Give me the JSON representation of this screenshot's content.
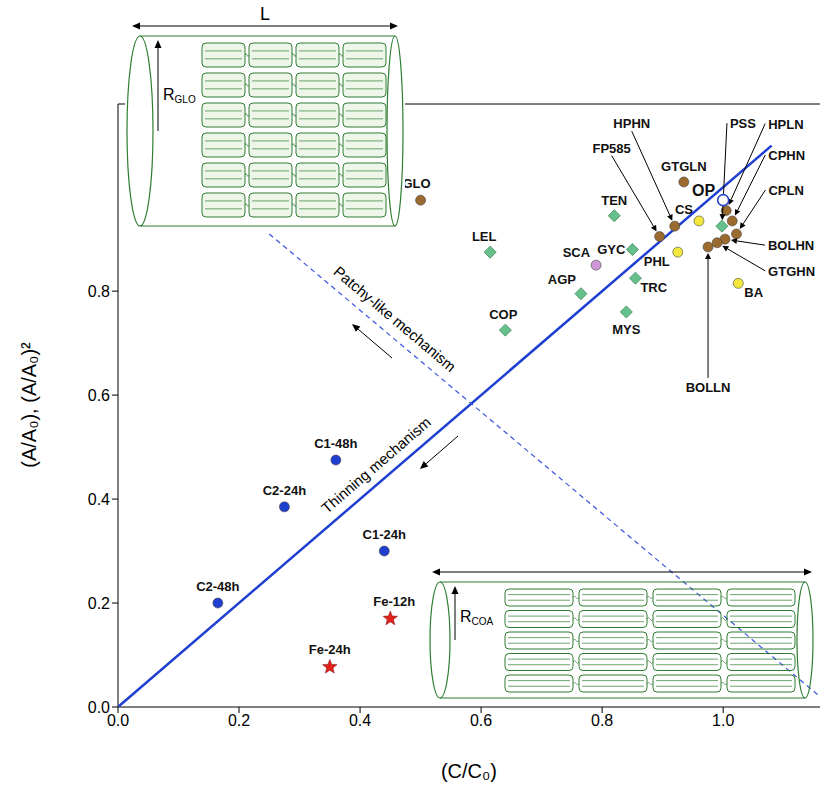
{
  "chart_data": {
    "type": "scatter",
    "x_label": "(C/C₀)",
    "y_label": "(A/A₀), (A/A₀)²",
    "xlim": [
      0,
      1.16
    ],
    "ylim": [
      0,
      1.16
    ],
    "xticks": [
      {
        "value": 0,
        "label": "0.0"
      },
      0.2,
      0.4,
      0.6,
      0.8,
      {
        "value": 1,
        "label": "1.0"
      }
    ],
    "yticks": [
      {
        "value": 0,
        "label": "0.0"
      },
      0.2,
      0.4,
      0.6,
      0.8
    ],
    "grid": false,
    "series": [
      {
        "color": "#9a6a2f",
        "marker": "circle",
        "points": [
          {
            "label": "GLO",
            "x": 0.5,
            "y": 0.975
          },
          {
            "label": "GTGLN",
            "x": 0.935,
            "y": 1.01
          },
          {
            "label": "HPHN",
            "x": 0.92,
            "y": 0.925
          },
          {
            "label": "FP585",
            "x": 0.895,
            "y": 0.905
          },
          {
            "label": "HPLN",
            "x": 1.005,
            "y": 0.955
          },
          {
            "label": "CPHN",
            "x": 1.015,
            "y": 0.935
          },
          {
            "label": "CPLN",
            "x": 1.022,
            "y": 0.91
          },
          {
            "label": "BOLHN",
            "x": 1.003,
            "y": 0.9
          },
          {
            "label": "GTGHN",
            "x": 0.99,
            "y": 0.893
          },
          {
            "label": "BOLLN",
            "x": 0.975,
            "y": 0.885
          }
        ]
      },
      {
        "color": "#66c08c",
        "marker": "diamond",
        "points": [
          {
            "label": "TEN",
            "x": 0.82,
            "y": 0.945
          },
          {
            "label": "LEL",
            "x": 0.615,
            "y": 0.875
          },
          {
            "label": "COP",
            "x": 0.64,
            "y": 0.725
          },
          {
            "label": "AGP",
            "x": 0.765,
            "y": 0.795
          },
          {
            "label": "MYS",
            "x": 0.84,
            "y": 0.76
          },
          {
            "label": "TRC",
            "x": 0.855,
            "y": 0.825
          },
          {
            "label": "GYC",
            "x": 0.85,
            "y": 0.88
          },
          {
            "label": "PSS",
            "x": 0.998,
            "y": 0.925
          }
        ]
      },
      {
        "color": "#f3e63c",
        "marker": "circle",
        "points": [
          {
            "label": "CS",
            "x": 0.96,
            "y": 0.935
          },
          {
            "label": "PHL",
            "x": 0.925,
            "y": 0.875
          },
          {
            "label": "BA",
            "x": 1.025,
            "y": 0.815
          }
        ]
      },
      {
        "color": "#cf97d8",
        "marker": "circle",
        "points": [
          {
            "label": "SCA",
            "x": 0.79,
            "y": 0.85
          }
        ]
      },
      {
        "color": "#2a45c8",
        "marker": "open_circle",
        "points": [
          {
            "label": "OP",
            "x": 1.0,
            "y": 0.975
          }
        ]
      },
      {
        "color": "#1f3fd1",
        "marker": "circle",
        "points": [
          {
            "label": "C1-48h",
            "x": 0.36,
            "y": 0.475
          },
          {
            "label": "C2-24h",
            "x": 0.275,
            "y": 0.385
          },
          {
            "label": "C1-24h",
            "x": 0.44,
            "y": 0.3
          },
          {
            "label": "C2-48h",
            "x": 0.165,
            "y": 0.2
          }
        ]
      },
      {
        "color": "#e3211c",
        "marker": "star",
        "points": [
          {
            "label": "Fe-12h",
            "x": 0.45,
            "y": 0.17
          },
          {
            "label": "Fe-24h",
            "x": 0.35,
            "y": 0.077
          }
        ]
      }
    ],
    "lines": [
      {
        "color": "#1f3fd1",
        "line_style": "solid",
        "x": [
          0,
          1.08
        ],
        "y": [
          0,
          1.08
        ]
      },
      {
        "color": "#3a55e0",
        "line_style": "dashed",
        "x": [
          0.25,
          1.16
        ],
        "y": [
          0.91,
          0.02
        ]
      }
    ],
    "annotations": [
      {
        "text": "Patchy-like mechanism"
      },
      {
        "text": "Thinning mechanism"
      }
    ],
    "insets": [
      {
        "length_label": "L",
        "radius_label": "R",
        "radius_subscript": "GLO"
      },
      {
        "radius_label": "R",
        "radius_subscript": "COA"
      }
    ]
  }
}
